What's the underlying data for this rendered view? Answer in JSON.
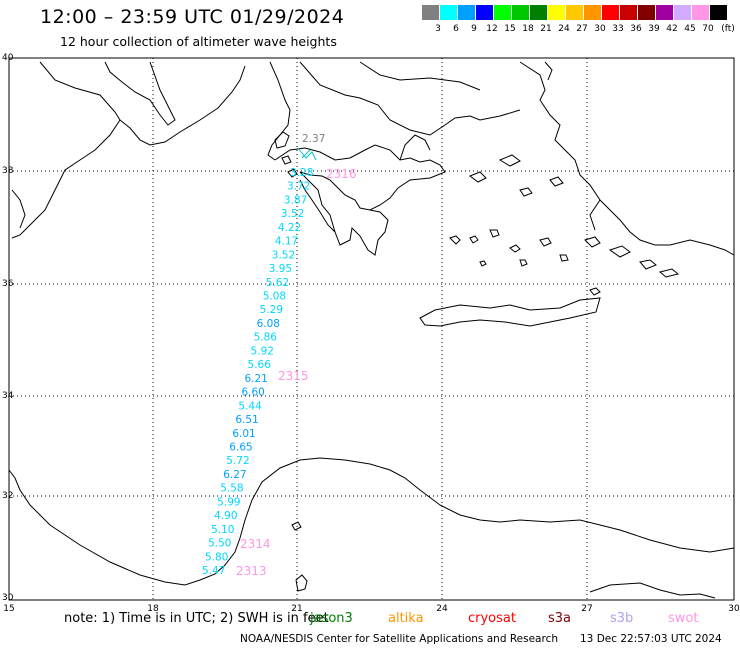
{
  "header": {
    "title": "12:00 – 23:59 UTC 01/29/2024",
    "subtitle": "12 hour collection of altimeter wave heights"
  },
  "legend": {
    "unit": "(ft)",
    "swatches": [
      {
        "color": "#808080",
        "label": "3"
      },
      {
        "color": "#00ffff",
        "label": "6"
      },
      {
        "color": "#00a0ff",
        "label": "9"
      },
      {
        "color": "#0000ff",
        "label": "12"
      },
      {
        "color": "#00ff00",
        "label": "15"
      },
      {
        "color": "#00c800",
        "label": "18"
      },
      {
        "color": "#008000",
        "label": "21"
      },
      {
        "color": "#ffff00",
        "label": "24"
      },
      {
        "color": "#ffc800",
        "label": "27"
      },
      {
        "color": "#ff9600",
        "label": "30"
      },
      {
        "color": "#ff0000",
        "label": "33"
      },
      {
        "color": "#c80000",
        "label": "36"
      },
      {
        "color": "#800000",
        "label": "39"
      },
      {
        "color": "#a000a0",
        "label": "42"
      },
      {
        "color": "#d2aaff",
        "label": "45"
      },
      {
        "color": "#ff96e6",
        "label": "70"
      },
      {
        "color": "#000000",
        "label": ""
      }
    ]
  },
  "axes": {
    "lat_labels": [
      "40",
      "38",
      "36",
      "34",
      "32",
      "30"
    ],
    "lon_labels": [
      "15",
      "18",
      "21",
      "24",
      "27",
      "30"
    ]
  },
  "track": {
    "heights": [
      "2.37",
      "3.28",
      "3.72",
      "3.87",
      "3.52",
      "4.22",
      "4.17",
      "3.52",
      "3.95",
      "5.62",
      "5.08",
      "5.29",
      "6.08",
      "5.86",
      "5.92",
      "5.66",
      "6.21",
      "6.60",
      "5.44",
      "6.51",
      "6.01",
      "6.65",
      "5.72",
      "6.27",
      "5.58",
      "5.99",
      "4.90",
      "5.10",
      "5.50",
      "5.80",
      "5.47"
    ],
    "time_labels": [
      "2316",
      "2315",
      "2314",
      "2313"
    ]
  },
  "footer": {
    "note": "note:  1) Time is in UTC;  2) SWH is in feet",
    "satellites": [
      {
        "name": "jason3",
        "color": "#008000"
      },
      {
        "name": "altika",
        "color": "#ff9600"
      },
      {
        "name": "cryosat",
        "color": "#ff0000"
      },
      {
        "name": "s3a",
        "color": "#800000"
      },
      {
        "name": "s3b",
        "color": "#b4a0f0"
      },
      {
        "name": "swot",
        "color": "#ff96e6"
      }
    ],
    "credit": "NOAA/NESDIS Center for Satellite Applications and Research",
    "timestamp": "13 Dec 22:57:03 UTC 2024"
  }
}
